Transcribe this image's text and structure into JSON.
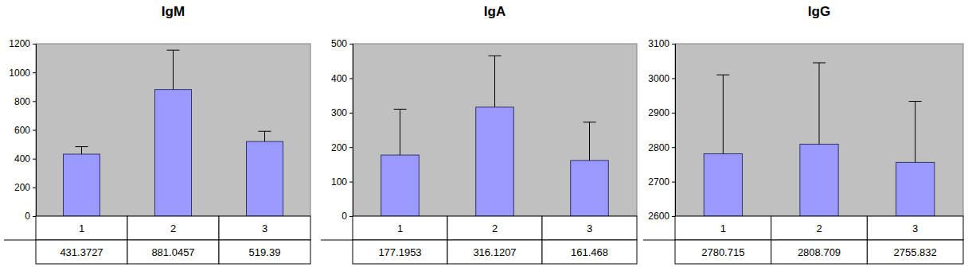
{
  "chart_data": [
    {
      "type": "bar",
      "title": "IgM",
      "categories": [
        "1",
        "2",
        "3"
      ],
      "values": [
        431.3727,
        881.0457,
        519.39
      ],
      "errors": [
        52,
        274,
        71
      ],
      "color": "#9999ff",
      "ylim": [
        0,
        1200
      ],
      "yticks": [
        0,
        200,
        400,
        600,
        800,
        1000,
        1200
      ]
    },
    {
      "type": "bar",
      "title": "IgA",
      "categories": [
        "1",
        "2",
        "3"
      ],
      "values": [
        177.1953,
        316.1207,
        161.468
      ],
      "errors": [
        133,
        149,
        111
      ],
      "color": "#9999ff",
      "ylim": [
        0,
        500
      ],
      "yticks": [
        0,
        100,
        200,
        300,
        400,
        500
      ]
    },
    {
      "type": "bar",
      "title": "IgG",
      "categories": [
        "1",
        "2",
        "3"
      ],
      "values": [
        2780.715,
        2808.709,
        2755.832
      ],
      "errors": [
        229,
        236,
        177
      ],
      "color": "#9999ff",
      "ylim": [
        2600,
        3100
      ],
      "yticks": [
        2600,
        2700,
        2800,
        2900,
        3000,
        3100
      ]
    }
  ]
}
